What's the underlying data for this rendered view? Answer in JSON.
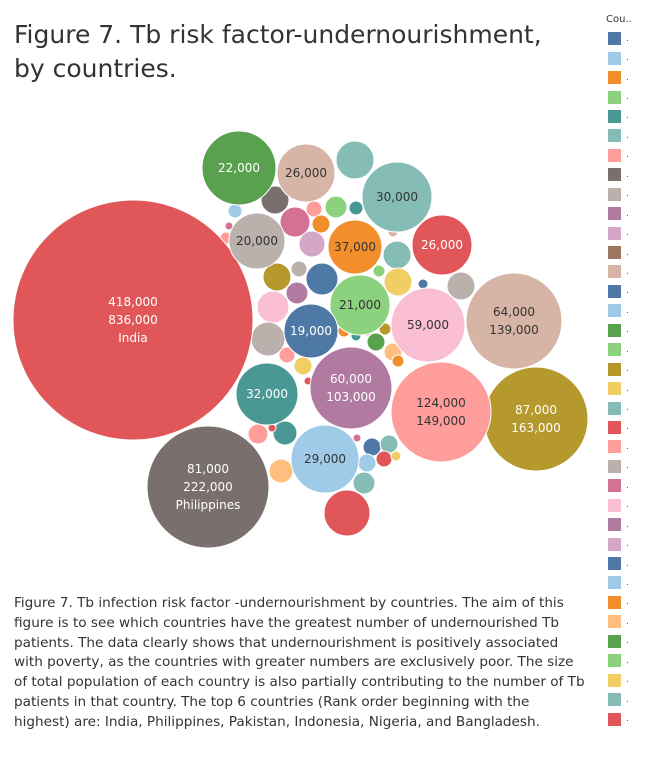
{
  "title": "Figure 7. Tb risk factor-undernourishment, by countries.",
  "caption": "Figure 7. Tb infection risk factor -undernourishment by countries. The aim of this figure is to see which countries have the greatest number of undernourished Tb patients. The data clearly shows that undernourishment is positively associated with poverty, as the countries with greater numbers are exclusively poor. The size of total population of each country is also partially contributing to the number of Tb patients in that country. The top 6 countries (Rank order beginning with the highest) are: India, Philippines, Pakistan, Indonesia, Nigeria, and Bangladesh.",
  "legend": {
    "title": "Cou..",
    "items": [
      {
        "label": ".",
        "color": "#4e79a7"
      },
      {
        "label": ".",
        "color": "#a0cbe8"
      },
      {
        "label": ".",
        "color": "#f28e2b"
      },
      {
        "label": ".",
        "color": "#8cd17d"
      },
      {
        "label": ".",
        "color": "#499894"
      },
      {
        "label": ".",
        "color": "#86bcb6"
      },
      {
        "label": ".",
        "color": "#ff9d9a"
      },
      {
        "label": ".",
        "color": "#79706e"
      },
      {
        "label": ".",
        "color": "#bab0ac"
      },
      {
        "label": ".",
        "color": "#b07aa1"
      },
      {
        "label": ".",
        "color": "#d4a6c8"
      },
      {
        "label": ".",
        "color": "#9d7660"
      },
      {
        "label": ".",
        "color": "#d7b5a6"
      },
      {
        "label": ".",
        "color": "#4e79a7"
      },
      {
        "label": ".",
        "color": "#a0cbe8"
      },
      {
        "label": ".",
        "color": "#59a14f"
      },
      {
        "label": ".",
        "color": "#8cd17d"
      },
      {
        "label": ".",
        "color": "#b6992d"
      },
      {
        "label": ".",
        "color": "#f1ce63"
      },
      {
        "label": ".",
        "color": "#86bcb6"
      },
      {
        "label": ".",
        "color": "#e15759"
      },
      {
        "label": ".",
        "color": "#ff9d9a"
      },
      {
        "label": ".",
        "color": "#bab0ac"
      },
      {
        "label": ".",
        "color": "#d37295"
      },
      {
        "label": ".",
        "color": "#fabfd2"
      },
      {
        "label": ".",
        "color": "#b07aa1"
      },
      {
        "label": ".",
        "color": "#d4a6c8"
      },
      {
        "label": ".",
        "color": "#4e79a7"
      },
      {
        "label": ".",
        "color": "#a0cbe8"
      },
      {
        "label": ".",
        "color": "#f28e2b"
      },
      {
        "label": ".",
        "color": "#ffbe7d"
      },
      {
        "label": ".",
        "color": "#59a14f"
      },
      {
        "label": ".",
        "color": "#8cd17d"
      },
      {
        "label": ".",
        "color": "#f1ce63"
      },
      {
        "label": ".",
        "color": "#86bcb6"
      },
      {
        "label": ".",
        "color": "#e15759"
      }
    ]
  },
  "chart_data": {
    "type": "bubble",
    "bubbles": [
      {
        "country": "India",
        "value": 418000,
        "value2": 836000,
        "labels": [
          "418,000",
          "836,000",
          "India"
        ],
        "color": "#e15759"
      },
      {
        "country": "Philippines",
        "value": 81000,
        "value2": 222000,
        "labels": [
          "81,000",
          "222,000",
          "Philippines"
        ],
        "color": "#79706e"
      },
      {
        "value": 87000,
        "value2": 163000,
        "labels": [
          "87,000",
          "163,000"
        ],
        "color": "#b6992d"
      },
      {
        "value": 124000,
        "value2": 149000,
        "labels": [
          "124,000",
          "149,000"
        ],
        "color": "#ff9d9a"
      },
      {
        "value": 64000,
        "value2": 139000,
        "labels": [
          "64,000",
          "139,000"
        ],
        "color": "#d7b5a6"
      },
      {
        "value": 60000,
        "value2": 103000,
        "labels": [
          "60,000",
          "103,000"
        ],
        "color": "#b07aa1"
      },
      {
        "value": 59000,
        "labels": [
          "59,000"
        ],
        "color": "#fabfd2"
      },
      {
        "value": 37000,
        "labels": [
          "37,000"
        ],
        "color": "#f28e2b"
      },
      {
        "value": 32000,
        "labels": [
          "32,000"
        ],
        "color": "#499894"
      },
      {
        "value": 30000,
        "labels": [
          "30,000"
        ],
        "color": "#86bcb6"
      },
      {
        "value": 29000,
        "labels": [
          "29,000"
        ],
        "color": "#a0cbe8"
      },
      {
        "value": 26000,
        "labels": [
          "26,000"
        ],
        "color": "#d7b5a6"
      },
      {
        "value": 26000,
        "labels": [
          "26,000"
        ],
        "color": "#e15759"
      },
      {
        "value": 22000,
        "labels": [
          "22,000"
        ],
        "color": "#59a14f"
      },
      {
        "value": 21000,
        "labels": [
          "21,000"
        ],
        "color": "#8cd17d"
      },
      {
        "value": 20000,
        "labels": [
          "20,000"
        ],
        "color": "#bab0ac"
      },
      {
        "value": 19000,
        "labels": [
          "19,000"
        ],
        "color": "#4e79a7"
      }
    ]
  }
}
